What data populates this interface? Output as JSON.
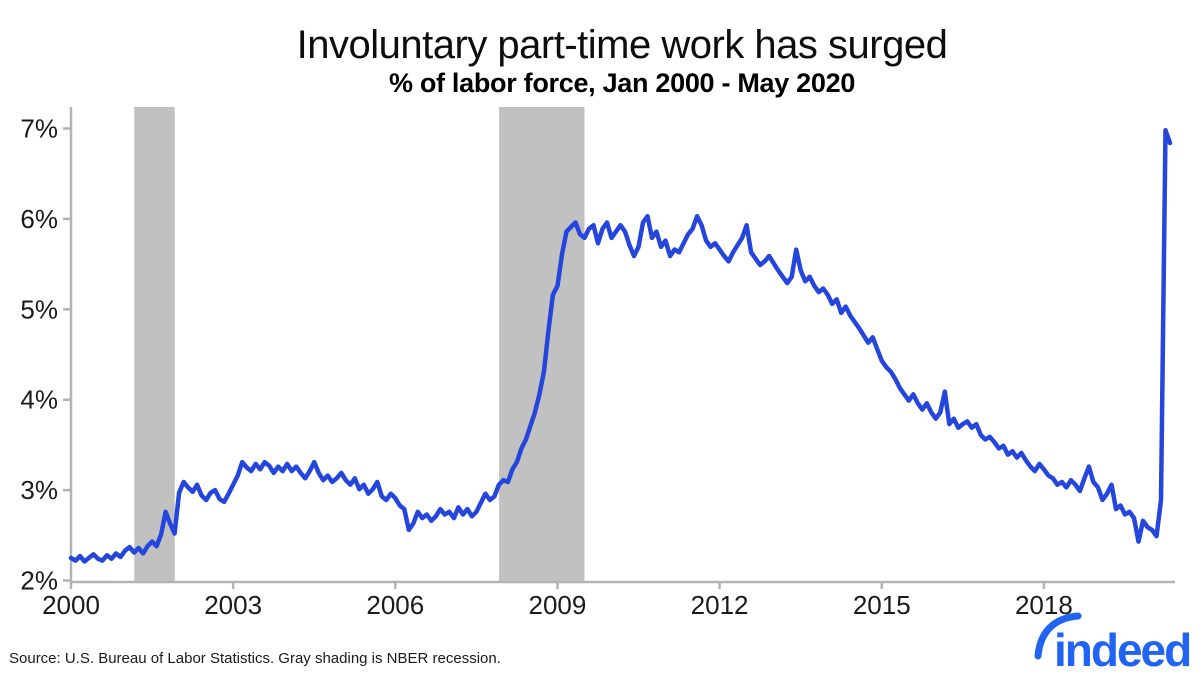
{
  "header": {
    "title": "Involuntary part-time work has surged",
    "subtitle": "% of labor force, Jan 2000 - May 2020"
  },
  "footer": {
    "source": "Source: U.S. Bureau of Labor Statistics. Gray shading is NBER recession.",
    "logo_text": "indeed",
    "logo_color": "#2164f3"
  },
  "chart_data": {
    "type": "line",
    "title": "Involuntary part-time work has surged",
    "subtitle": "% of labor force, Jan 2000 - May 2020",
    "xlabel": "",
    "ylabel": "",
    "xlim": [
      2000,
      2020.45
    ],
    "ylim": [
      2,
      7
    ],
    "grid": false,
    "legend": "none",
    "line_color": "#2546dd",
    "band_color": "#c1c1c1",
    "axis_color": "#b3b3b3",
    "x_ticks": [
      {
        "value": 2000,
        "label": "2000"
      },
      {
        "value": 2003,
        "label": "2003"
      },
      {
        "value": 2006,
        "label": "2006"
      },
      {
        "value": 2009,
        "label": "2009"
      },
      {
        "value": 2012,
        "label": "2012"
      },
      {
        "value": 2015,
        "label": "2015"
      },
      {
        "value": 2018,
        "label": "2018"
      }
    ],
    "y_ticks": [
      {
        "value": 2,
        "label": "2%"
      },
      {
        "value": 3,
        "label": "3%"
      },
      {
        "value": 4,
        "label": "4%"
      },
      {
        "value": 5,
        "label": "5%"
      },
      {
        "value": 6,
        "label": "6%"
      },
      {
        "value": 7,
        "label": "7%"
      }
    ],
    "recession_bands": [
      {
        "start": 2001.17,
        "end": 2001.92,
        "label": "NBER recession 2001"
      },
      {
        "start": 2007.92,
        "end": 2009.5,
        "label": "NBER recession 2007-2009"
      }
    ],
    "series": [
      {
        "name": "Involuntary part-time workers, % of labor force",
        "frequency": "monthly",
        "x_start_year": 2000,
        "x_end": "May 2020",
        "values": [
          2.25,
          2.22,
          2.27,
          2.21,
          2.25,
          2.29,
          2.24,
          2.22,
          2.28,
          2.24,
          2.3,
          2.26,
          2.33,
          2.37,
          2.31,
          2.36,
          2.3,
          2.38,
          2.43,
          2.38,
          2.51,
          2.76,
          2.63,
          2.52,
          2.97,
          3.09,
          3.03,
          2.98,
          3.06,
          2.94,
          2.89,
          2.97,
          3.0,
          2.9,
          2.87,
          2.96,
          3.06,
          3.16,
          3.31,
          3.25,
          3.21,
          3.29,
          3.23,
          3.31,
          3.27,
          3.19,
          3.26,
          3.21,
          3.29,
          3.21,
          3.26,
          3.19,
          3.13,
          3.21,
          3.31,
          3.19,
          3.11,
          3.16,
          3.09,
          3.13,
          3.19,
          3.11,
          3.06,
          3.13,
          3.01,
          3.06,
          2.96,
          3.01,
          3.09,
          2.93,
          2.89,
          2.96,
          2.91,
          2.83,
          2.79,
          2.56,
          2.63,
          2.76,
          2.69,
          2.73,
          2.66,
          2.71,
          2.79,
          2.73,
          2.76,
          2.69,
          2.81,
          2.73,
          2.79,
          2.71,
          2.76,
          2.86,
          2.96,
          2.89,
          2.93,
          3.06,
          3.11,
          3.09,
          3.23,
          3.31,
          3.46,
          3.56,
          3.71,
          3.86,
          4.06,
          4.31,
          4.76,
          5.16,
          5.26,
          5.61,
          5.86,
          5.91,
          5.96,
          5.83,
          5.79,
          5.89,
          5.93,
          5.73,
          5.89,
          5.96,
          5.79,
          5.86,
          5.93,
          5.86,
          5.71,
          5.59,
          5.69,
          5.96,
          6.03,
          5.79,
          5.86,
          5.69,
          5.76,
          5.59,
          5.66,
          5.63,
          5.73,
          5.83,
          5.89,
          6.03,
          5.93,
          5.76,
          5.69,
          5.73,
          5.66,
          5.59,
          5.53,
          5.63,
          5.71,
          5.79,
          5.93,
          5.63,
          5.56,
          5.49,
          5.53,
          5.59,
          5.51,
          5.43,
          5.36,
          5.29,
          5.36,
          5.66,
          5.43,
          5.31,
          5.36,
          5.26,
          5.19,
          5.23,
          5.16,
          5.06,
          5.11,
          4.96,
          5.03,
          4.93,
          4.86,
          4.79,
          4.71,
          4.63,
          4.69,
          4.56,
          4.43,
          4.36,
          4.31,
          4.23,
          4.13,
          4.06,
          3.99,
          4.06,
          3.96,
          3.89,
          3.96,
          3.86,
          3.79,
          3.86,
          4.09,
          3.73,
          3.79,
          3.69,
          3.73,
          3.76,
          3.69,
          3.73,
          3.61,
          3.56,
          3.59,
          3.53,
          3.46,
          3.49,
          3.39,
          3.43,
          3.36,
          3.41,
          3.33,
          3.26,
          3.21,
          3.29,
          3.23,
          3.16,
          3.13,
          3.06,
          3.09,
          3.03,
          3.11,
          3.06,
          2.99,
          3.13,
          3.26,
          3.09,
          3.03,
          2.89,
          2.96,
          3.06,
          2.79,
          2.83,
          2.73,
          2.76,
          2.69,
          2.43,
          2.66,
          2.59,
          2.56,
          2.49,
          2.89,
          6.98,
          6.84
        ]
      }
    ]
  }
}
